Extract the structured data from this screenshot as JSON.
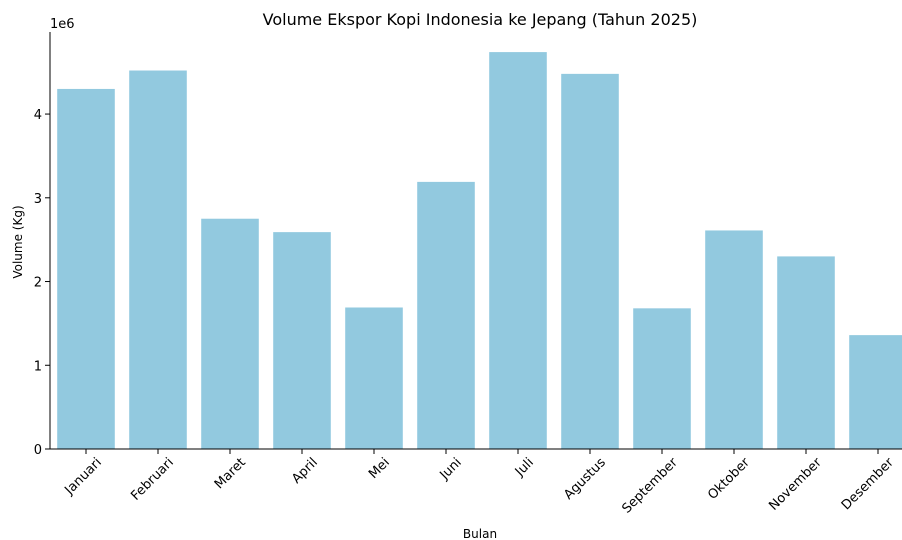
{
  "chart_data": {
    "type": "bar",
    "title": "Volume Ekspor Kopi Indonesia ke Jepang (Tahun 2025)",
    "xlabel": "Bulan",
    "ylabel": "Volume (Kg)",
    "offset_label": "1e6",
    "categories": [
      "Januari",
      "Februari",
      "Maret",
      "April",
      "Mei",
      "Juni",
      "Juli",
      "Agustus",
      "September",
      "Oktober",
      "November",
      "Desember"
    ],
    "values": [
      4300000,
      4520000,
      2750000,
      2590000,
      1690000,
      3190000,
      4740000,
      4480000,
      1680000,
      2610000,
      2300000,
      1360000
    ],
    "ylim": [
      0,
      4980000
    ],
    "yticks": [
      0,
      1000000,
      2000000,
      3000000,
      4000000
    ],
    "ytick_labels": [
      "0",
      "1",
      "2",
      "3",
      "4"
    ],
    "bar_color": "#92c9df",
    "grid": false,
    "legend": "none"
  }
}
